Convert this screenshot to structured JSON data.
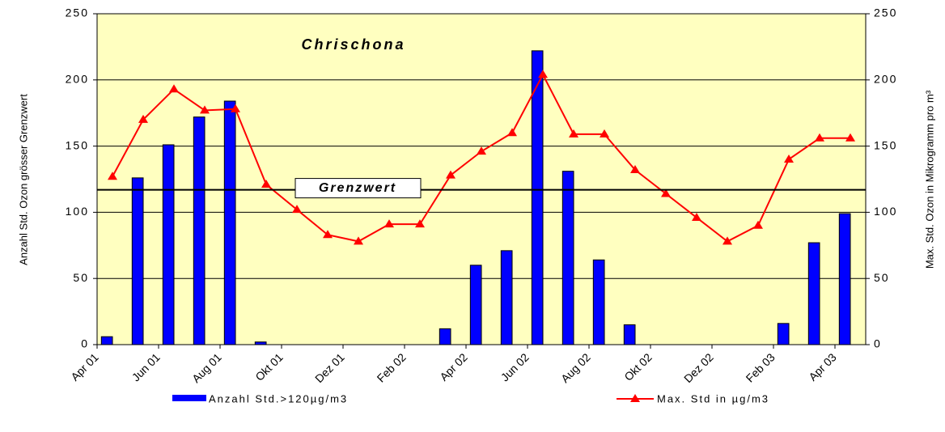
{
  "chart_data": {
    "type": "bar_line",
    "title": "Chrischona",
    "ylabel": "Anzahl Std. Ozon grösser Grenzwert",
    "y2label": "Max. Std. Ozon in Mikrogramm pro m³",
    "categories": [
      "Apr 01",
      null,
      "Jun 01",
      null,
      "Aug 01",
      null,
      "Okt 01",
      null,
      "Dez 01",
      null,
      "Feb 02",
      null,
      "Apr 02",
      null,
      "Jun 02",
      null,
      "Aug 02",
      null,
      "Okt 02",
      null,
      "Dez 02",
      null,
      "Feb 03",
      null,
      "Apr 03"
    ],
    "series": [
      {
        "name": "Anzahl Std.>120µg/m3",
        "type": "bar",
        "color": "#0000ff",
        "axis": "y",
        "values": [
          6,
          126,
          151,
          172,
          184,
          2,
          0,
          0,
          0,
          0,
          0,
          12,
          60,
          71,
          222,
          131,
          64,
          15,
          0,
          0,
          0,
          0,
          16,
          77,
          99
        ]
      },
      {
        "name": "Max. Std in µg/m3",
        "type": "line",
        "color": "#ff0000",
        "axis": "y2",
        "values": [
          127,
          170,
          193,
          177,
          178,
          121,
          102,
          83,
          78,
          91,
          91,
          128,
          146,
          160,
          204,
          159,
          159,
          132,
          114,
          96,
          78,
          90,
          140,
          156,
          156
        ]
      }
    ],
    "reference_line": {
      "label": "Grenzwert",
      "value": 117
    },
    "ylim": [
      0,
      250
    ],
    "yticks": [
      0,
      50,
      100,
      150,
      200,
      250
    ],
    "y2lim": [
      0,
      250
    ],
    "y2ticks": [
      0,
      50,
      100,
      150,
      200,
      250
    ],
    "grid": true,
    "legend": "bottom"
  }
}
